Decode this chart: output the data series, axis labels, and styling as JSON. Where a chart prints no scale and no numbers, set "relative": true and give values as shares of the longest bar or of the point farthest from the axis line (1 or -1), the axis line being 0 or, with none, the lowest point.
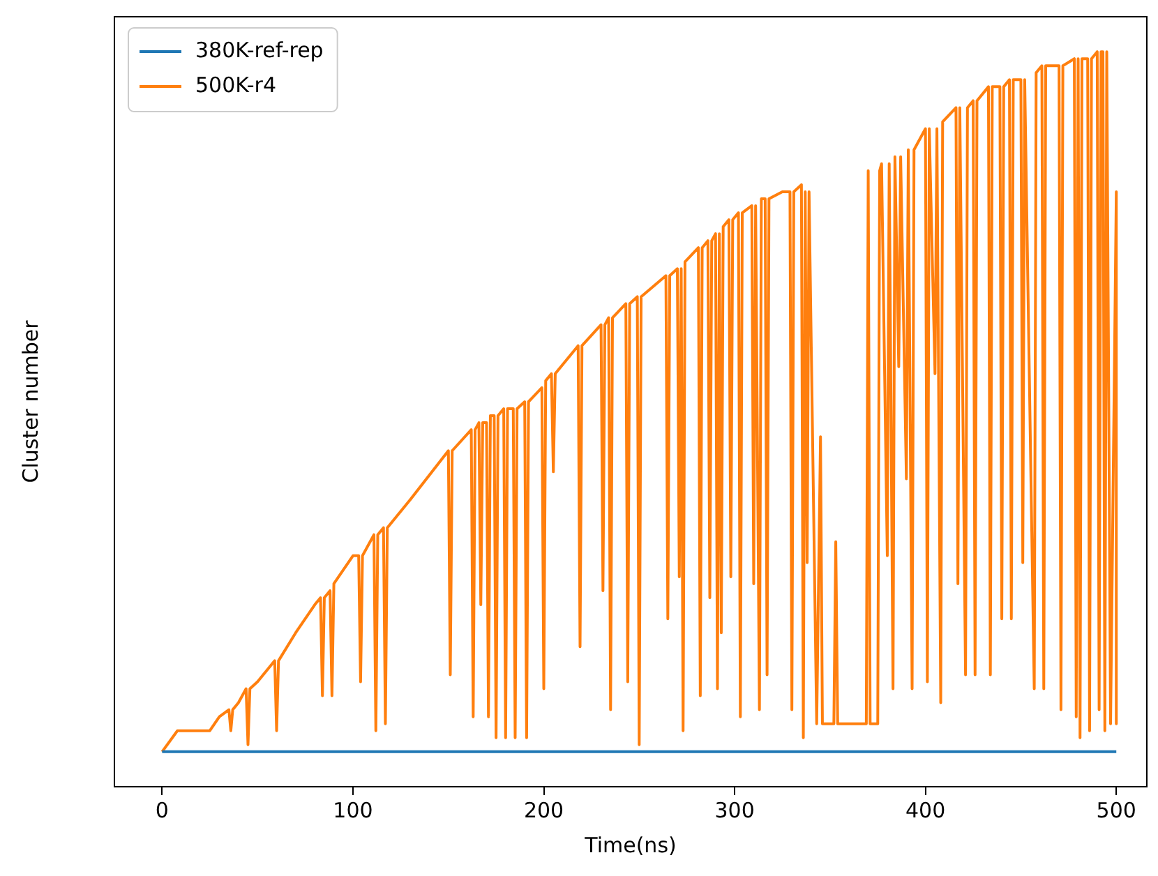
{
  "chart_data": {
    "type": "line",
    "xlabel": "Time(ns)",
    "ylabel": "Cluster number",
    "relative": true,
    "tick_labels": "x",
    "legend": "top left",
    "grid": false,
    "marker": "none",
    "line_style": "solid",
    "xlim": [
      -25,
      516
    ],
    "xticks": [
      0,
      100,
      200,
      300,
      400,
      500
    ],
    "series": [
      {
        "name": "380K-ref-rep",
        "color": "#1f77b4",
        "x": [
          0,
          500
        ],
        "values": [
          0,
          0
        ]
      },
      {
        "name": "500K-r4",
        "color": "#ff7f0e",
        "x": [
          0,
          8,
          15,
          25,
          30,
          35,
          36,
          37,
          40,
          44,
          45,
          46,
          50,
          59,
          60,
          61,
          70,
          80,
          83,
          84,
          85,
          88,
          89,
          90,
          100,
          103,
          104,
          105,
          111,
          112,
          113,
          116,
          117,
          118,
          130,
          150,
          151,
          152,
          162,
          163,
          164,
          166,
          167,
          168,
          170,
          171,
          172,
          174,
          175,
          176,
          179,
          180,
          181,
          184,
          185,
          186,
          190,
          191,
          192,
          199,
          200,
          201,
          204,
          205,
          206,
          218,
          219,
          220,
          230,
          231,
          232,
          234,
          235,
          236,
          243,
          244,
          245,
          249,
          250,
          251,
          264,
          265,
          266,
          270,
          271,
          272,
          273,
          274,
          281,
          282,
          283,
          286,
          287,
          288,
          290,
          291,
          292,
          293,
          294,
          297,
          298,
          299,
          302,
          303,
          304,
          309,
          310,
          311,
          313,
          314,
          316,
          317,
          318,
          325,
          329,
          330,
          331,
          335,
          336,
          337,
          338,
          339,
          343,
          345,
          346,
          352,
          353,
          354,
          369,
          370,
          371,
          375,
          376,
          377,
          380,
          381,
          383,
          384,
          386,
          387,
          390,
          391,
          393,
          394,
          400,
          401,
          402,
          405,
          406,
          408,
          409,
          416,
          417,
          418,
          421,
          422,
          425,
          426,
          427,
          433,
          434,
          435,
          439,
          440,
          441,
          444,
          445,
          446,
          450,
          451,
          452,
          457,
          458,
          461,
          462,
          463,
          470,
          471,
          472,
          478,
          479,
          480,
          481,
          482,
          485,
          486,
          487,
          490,
          491,
          492,
          493,
          494,
          495,
          497,
          500,
          500
        ],
        "values": [
          0,
          0.03,
          0.03,
          0.03,
          0.05,
          0.06,
          0.03,
          0.06,
          0.07,
          0.09,
          0.01,
          0.09,
          0.1,
          0.13,
          0.03,
          0.13,
          0.17,
          0.21,
          0.22,
          0.08,
          0.22,
          0.23,
          0.08,
          0.24,
          0.28,
          0.28,
          0.1,
          0.28,
          0.31,
          0.03,
          0.31,
          0.32,
          0.04,
          0.32,
          0.36,
          0.43,
          0.11,
          0.43,
          0.46,
          0.05,
          0.46,
          0.47,
          0.21,
          0.47,
          0.47,
          0.05,
          0.48,
          0.48,
          0.02,
          0.48,
          0.49,
          0.02,
          0.49,
          0.49,
          0.02,
          0.49,
          0.5,
          0.02,
          0.5,
          0.52,
          0.09,
          0.53,
          0.54,
          0.4,
          0.54,
          0.58,
          0.15,
          0.58,
          0.61,
          0.23,
          0.61,
          0.62,
          0.06,
          0.62,
          0.64,
          0.1,
          0.64,
          0.65,
          0.01,
          0.65,
          0.68,
          0.19,
          0.68,
          0.69,
          0.25,
          0.69,
          0.03,
          0.7,
          0.72,
          0.08,
          0.72,
          0.73,
          0.22,
          0.73,
          0.74,
          0.09,
          0.74,
          0.17,
          0.75,
          0.76,
          0.25,
          0.76,
          0.77,
          0.05,
          0.77,
          0.78,
          0.24,
          0.78,
          0.06,
          0.79,
          0.79,
          0.11,
          0.79,
          0.8,
          0.8,
          0.06,
          0.8,
          0.81,
          0.02,
          0.8,
          0.27,
          0.8,
          0.04,
          0.45,
          0.04,
          0.04,
          0.3,
          0.04,
          0.04,
          0.83,
          0.04,
          0.04,
          0.83,
          0.84,
          0.28,
          0.84,
          0.09,
          0.85,
          0.55,
          0.85,
          0.39,
          0.86,
          0.09,
          0.86,
          0.89,
          0.1,
          0.89,
          0.54,
          0.89,
          0.07,
          0.9,
          0.92,
          0.24,
          0.92,
          0.11,
          0.92,
          0.93,
          0.11,
          0.93,
          0.95,
          0.11,
          0.95,
          0.95,
          0.19,
          0.95,
          0.96,
          0.19,
          0.96,
          0.96,
          0.27,
          0.96,
          0.09,
          0.97,
          0.98,
          0.09,
          0.98,
          0.98,
          0.06,
          0.98,
          0.99,
          0.05,
          0.99,
          0.02,
          0.99,
          0.99,
          0.03,
          0.99,
          1.0,
          0.06,
          1.0,
          1.0,
          0.03,
          1.0,
          0.04,
          0.8,
          0.04
        ]
      }
    ]
  }
}
